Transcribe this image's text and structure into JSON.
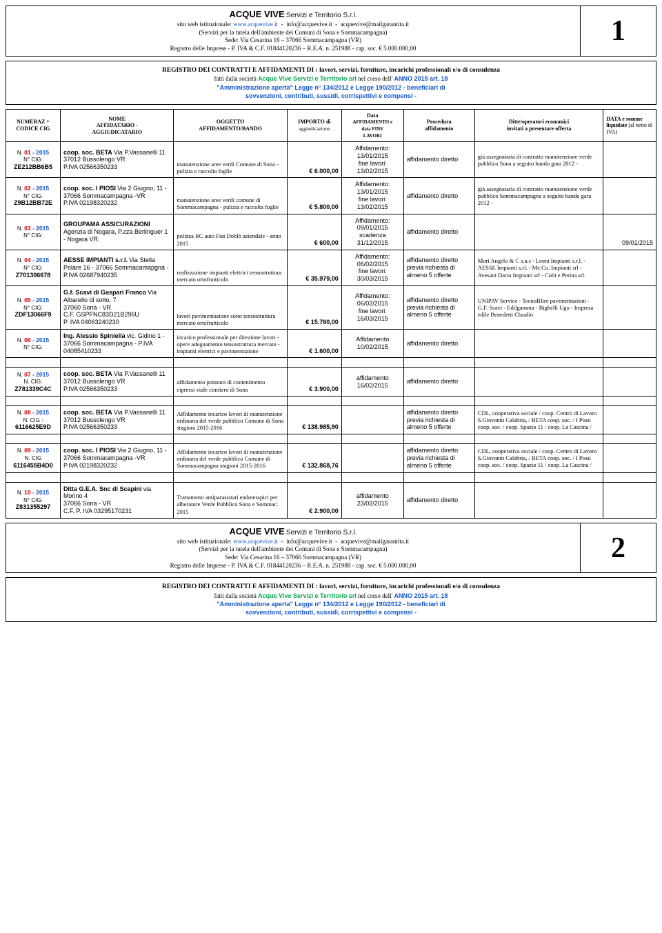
{
  "header": {
    "company_name": "ACQUE VIVE",
    "company_sub": "Servizi e Territorio S.r.l.",
    "line1_pre": "sito web istituzionale: ",
    "site": "www.acquevive.it",
    "email1": "info@acquevive.it",
    "email2": "acquevive@mailgarantita.it",
    "line2": "(Servizi per la tutela dell'ambiente dei Comuni di Sona e Sommacampagna)",
    "line3": "Sede: Via Cesarina 16 – 37066 Sommacampagna (VR)",
    "line4": "Registro delle Imprese   -  P. IVA & C.F. 01844120236  –  R.E.A. n. 251988  -  cap.  soc.  € 5.000.000,00",
    "page1": "1",
    "page2": "2"
  },
  "registro": {
    "title": "REGISTRO DEI CONTRATTI E AFFIDAMENTI  DI :  lavori, servizi, forniture, incarichi professionali e/o di consulenza",
    "sub1a": "fatti dalla società ",
    "sub1b": "Acque Vive Servizi e Territorio srl",
    "sub1c": " nel corso dell' ",
    "sub1d": "ANNO 2015  art. 18",
    "law1": "\"Amministrazione aperta\" Legge n° 134/2012 e Legge 190/2012 - beneficiari di",
    "law2": "sovvenzioni, contributi, sussidi, corrispettivi e compensi -"
  },
  "columns": {
    "c1": "NUMERAZ + CODICE CIG",
    "c2a": "NOME",
    "c2b": "AFFIDATARIO -",
    "c2c": "AGGIUDICATARIO",
    "c3a": "OGGETTO",
    "c3b": "AFFIDAMENTO/BANDO",
    "c4a": "IMPORTO di",
    "c4b": "aggiudicazione",
    "c5a": "Data",
    "c5b": "AFFIDAMENTO e",
    "c5c": "data          FINE",
    "c5d": "LAVORI",
    "c6a": "Procedura",
    "c6b": "affidamento",
    "c7a": "Ditte/operatori economici",
    "c7b": "invitati  a presentare offerta",
    "c8a": "DATA e somme",
    "c8b": "liquidate",
    "c8c": " (al netto di IVA)"
  },
  "rows": [
    {
      "n": "01",
      "y": "2015",
      "ncig": "N° CIG:",
      "cig": "ZE212BB6B5",
      "nome_b": "coop. soc. BETA",
      "nome": "Via P.Vassanelli 11\n37012 Bussolengo VR\nP.IVA 02566350233",
      "ogg": "manutenzione aree verdi Comune di Sona - pulizia e raccolta foglie",
      "imp": "€ 6.000,00",
      "data": "Affidamento:\n13/01/2015\nfine lavori:\n13/02/2015",
      "proc": "affidamento diretto",
      "ditte": "già assegnataria di contratto manutenzione verde pubblico Sona a seguito bando gara 2012 -",
      "somme": ""
    },
    {
      "n": "02",
      "y": "2015",
      "ncig": "N° CIG:",
      "cig": "Z9B12BB72E",
      "nome_b": "coop. soc. I PIOSI",
      "nome": "Via 2 Giugno, 11 - 37066 Sommacampagna -VR\nP.IVA 02198320232",
      "ogg": "manutenzione  aree verdi comune di Sommacampagna - pulizia e raccolta foglie",
      "imp": "€ 5.800,00",
      "data": "Affidamento:\n13/01/2015\nfine lavori:\n13/02/2015",
      "proc": "affidamento diretto",
      "ditte": "già assegnataria di contratto manutenzione verde pubblico Sommacampagna a seguito bando gara 2012 -",
      "somme": ""
    },
    {
      "n": "03",
      "y": "2015",
      "ncig": "N° CIG:",
      "cig": "",
      "nome_b": "GROUPAMA ASSICURAZIONI",
      "nome": "Agenzia di Nogara, P.zza Berlinguer 1  - Nogara VR.",
      "ogg": "polizza RC auto Fiat Doblò aziendale - anno 2015",
      "imp": "€ 600,00",
      "data": "Affidamento:\n09/01/2015\nscadenza\n31/12/2015",
      "proc": "affidamento diretto",
      "ditte": "",
      "somme": "09/01/2015"
    },
    {
      "n": "04",
      "y": "2015",
      "ncig": "N° CIG:",
      "cig": "Z701306678",
      "nome_b": "AESSE IMPIANTI s.r.l.",
      "nome": "Via Stella Polare 16 - 37066 Sommacamapgna -     P.IVA 02687940235",
      "ogg": "realizzazione impianti elettrici tensostruttura mercato ortofrutticolo",
      "imp": "€ 35.979,00",
      "data": "Affidamento:\n06/02/2015\nfine lavori:\n30/03/2015",
      "proc": "affidamento diretto previa richiesta di almeno 5 offerte",
      "ditte": "Mori Angelo & C s.a.s - Leoni Impianti s.r.l. - AESSE Impianti s.rl. - Me.Co. Impianti srl -  Avesani Dario Impianti srl - Cubi e Perina srl.",
      "somme": ""
    },
    {
      "n": "05",
      "y": "2015",
      "ncig": "N° CIG:",
      "cig": "ZDF13066F9",
      "nome_b": "G.f. Scavi di Gaspari Franco",
      "nome": "Via Albarello di sotto, 7\n37060 Sona - VR\nC.F. GSPFNC83D21B296U\nP. IVA   04063240230",
      "ogg": "lavori pavimentazione sotto tensostruttura mercato ortofrutticolo",
      "imp": "€ 15.760,00",
      "data": "Affidamento:\n06/02/2015\nfine lavori:\n16/03/2015",
      "proc": "affidamento diretto previa richiesta di almeno 5 offerte",
      "ditte": "UNIPAV Service - TecnoBItre pavimentazioni - G.F. Scavi - Edilgamma - Bighelli Ugo - Impresa edile Benedetti Claudio",
      "somme": ""
    },
    {
      "n": "06",
      "y": "2015",
      "ncig": "N° CIG:",
      "cig": "",
      "nome_b": "Ing. Alessio Spiniella",
      "nome": "vic. Gidino 1 - 37066 Sommacampagna - P.IVA 04085410233",
      "ogg": "incarico professionale per direzione lavori - opere adeguamento tensostruttura mercato - impianti elettrici e pavimentazione",
      "imp": "€ 1.600,00",
      "data": "Affidamento\n10/02/2015",
      "proc": "affidamento diretto",
      "ditte": "",
      "somme": ""
    },
    {
      "n": "07",
      "y": "2015",
      "ncig": "N. CIG:",
      "cig": "Z781339C4C",
      "nome_b": "coop. soc. BETA",
      "nome": "Via P.Vassanelli 11\n37012 Bussolengo VR\nP.IVA 02566350233",
      "ogg": "affidamento potatura di contenimento cipressi viale cimitero di Sona",
      "imp": "€     3.900,00",
      "data": "affidamento\n16/02/2015",
      "proc": "affidamento diretto",
      "ditte": "",
      "somme": ""
    },
    {
      "n": "08",
      "y": "2015",
      "ncig": "N. CIG :",
      "cig": "6116625E9D",
      "nome_b": "coop. soc. BETA",
      "nome": "Via P.Vassanelli 11\n37012 Bussolengo VR\nP.IVA 02566350233",
      "ogg": "Affidamento incarico lavori di manutenzione ordinaria del verde pubblico Comune di Sona stagioni 2015-2016",
      "imp": "€ 138.985,90",
      "data": "",
      "proc": "affidamento diretto previa richiesta di almeno 5 offerte",
      "ditte": "CDL, cooperativa sociale / coop. Centro di Lavoro S.Giovanni Calabria, / BETA coop. soc. / I Piosi coop. soc. / coop. Spazio 11 / coop. La Cascina /",
      "somme": ""
    },
    {
      "n": "09",
      "y": "2015",
      "ncig": "N. CIG",
      "cig": "6116455B4D0",
      "nome_b": "coop. soc. I PIOSI",
      "nome": "Via 2 Giugno, 11 - 37066 Sommacampagna -VR\nP.IVA 02198320232",
      "ogg": "Affidamento incarico lavori di manutenzione ordinaria del verde pubblico Comune di Sommacampagna stagioni 2015-2016",
      "imp": "€ 132.868,76",
      "data": "",
      "proc": "affidamento diretto previa richiesta di almeno 5 offerte",
      "ditte": "CDL, cooperativa sociale / coop. Centro di Lavoro S.Giovanni Calabria, / BETA coop. soc. / I Piosi coop. soc. / coop. Spazio 11 / coop. La Cascina /",
      "somme": ""
    },
    {
      "n": "10",
      "y": "2015",
      "ncig": "N° CIG:",
      "cig": "Z831355297",
      "nome_b": "Ditta G.E.A. Snc di Scapini",
      "nome": "via Morino 4\n37066 Sona - VR\nC.F.  P. IVA 03295170231",
      "ogg": "Trattamenti antiparassitari endoterapici per alberature Verde Pubblico Sona e Sommac. 2015",
      "imp": "€ 2.900,00",
      "data": "affidamento\n23/02/2015",
      "proc": "affidamento diretto",
      "ditte": "",
      "somme": ""
    }
  ]
}
